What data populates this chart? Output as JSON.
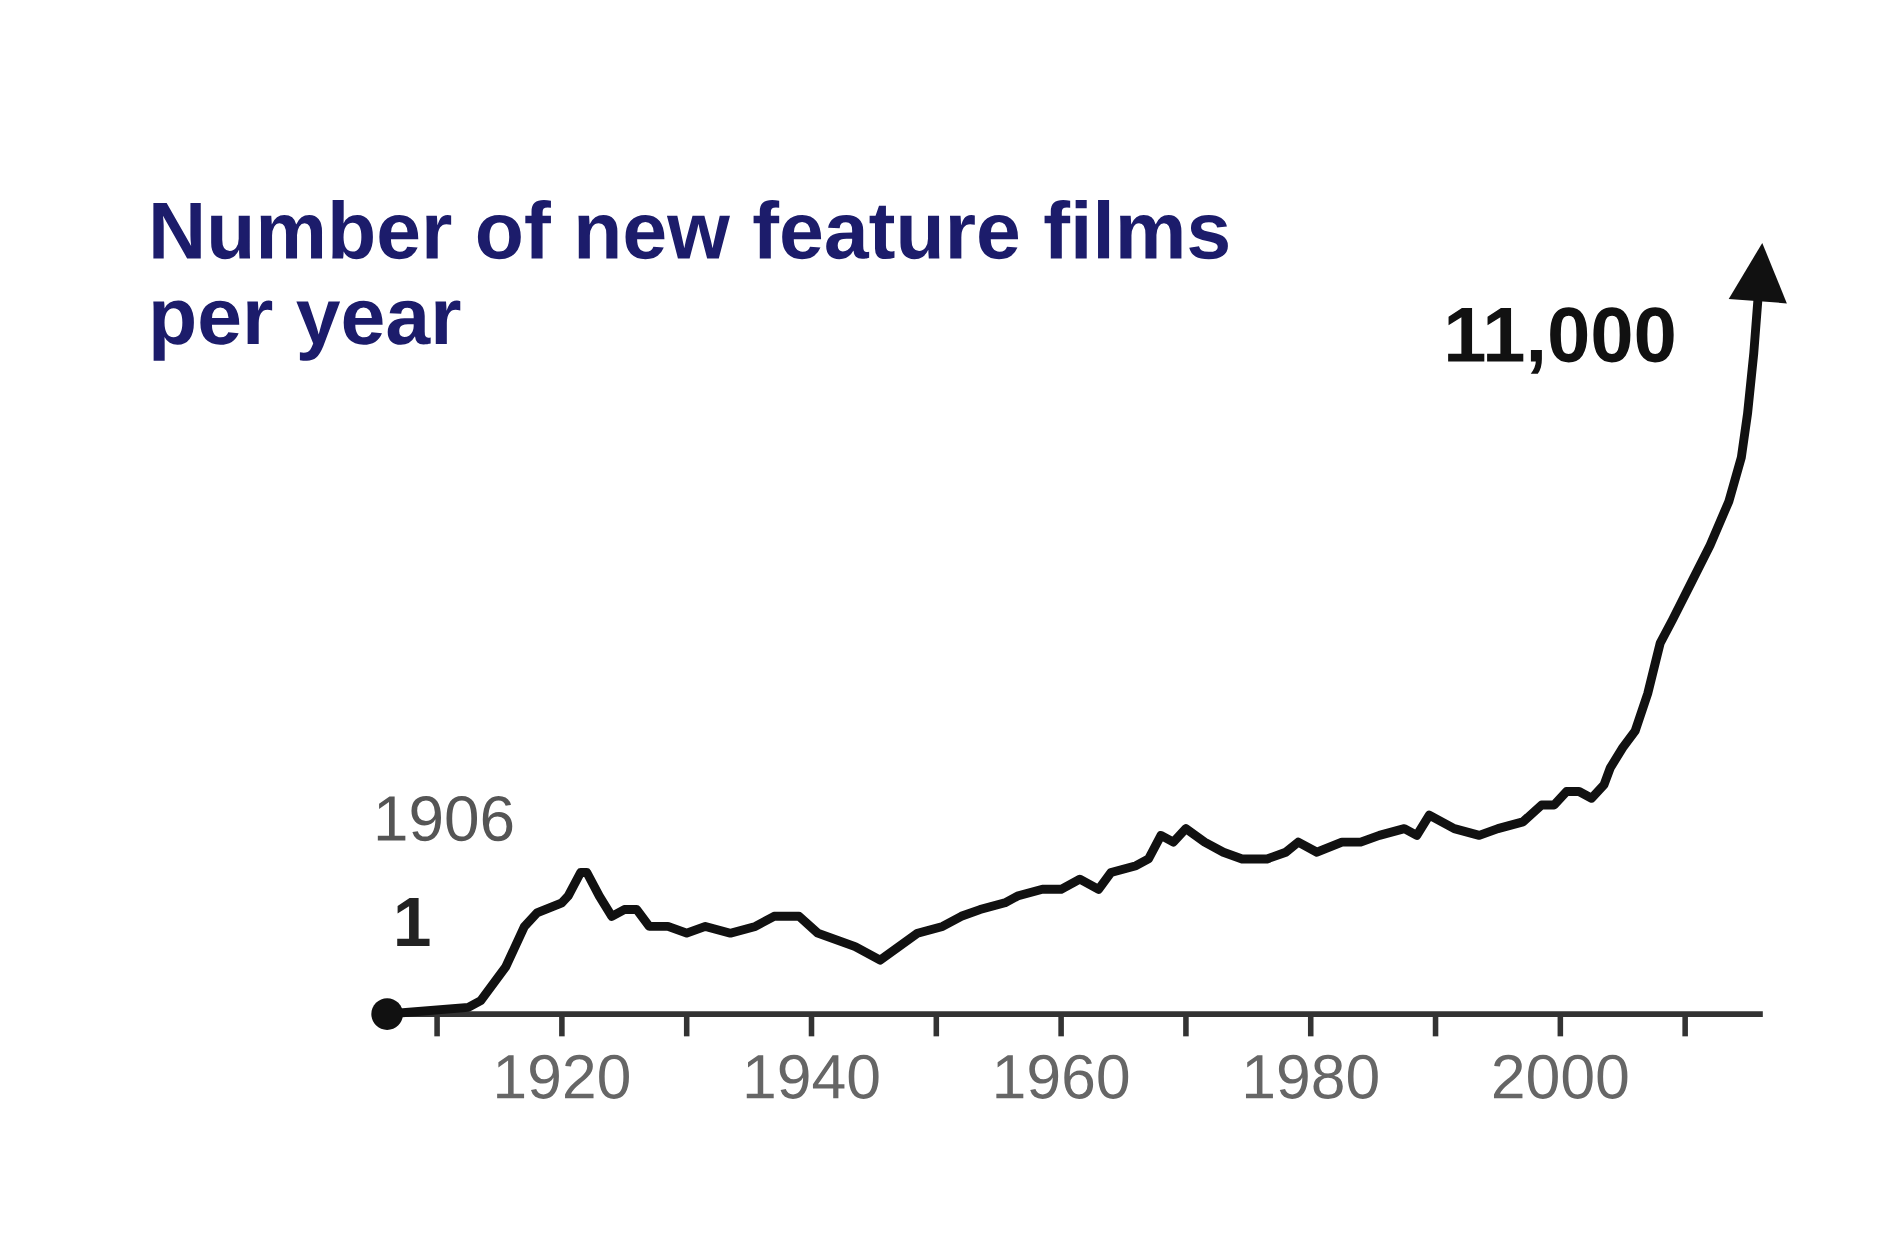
{
  "chart_data": {
    "type": "line",
    "title": "Number of new feature films\nper year",
    "xlim": [
      1906,
      2016
    ],
    "xticks": [
      {
        "value": 1910,
        "label": null
      },
      1920,
      {
        "value": 1930,
        "label": null
      },
      1940,
      {
        "value": 1950,
        "label": null
      },
      1960,
      {
        "value": 1970,
        "label": null
      },
      1980,
      {
        "value": 1990,
        "label": null
      },
      2000,
      {
        "value": 2010,
        "label": null
      }
    ],
    "tick_labels": "x",
    "annotations": [
      "1906"
    ],
    "series": [
      {
        "color": "#111111",
        "x": [
          1906,
          1912.5,
          1913.5,
          1915.5,
          1917,
          1918,
          1920,
          1920.5,
          1921.5,
          1922,
          1923,
          1924,
          1925,
          1926,
          1927,
          1928.5,
          1930,
          1931.5,
          1933.5,
          1935.5,
          1937,
          1939,
          1940.5,
          1943.5,
          1945.5,
          1947,
          1948.5,
          1950.5,
          1952,
          1953.5,
          1955.5,
          1956.5,
          1958.5,
          1960,
          1961.5,
          1963,
          1964,
          1966,
          1967,
          1968,
          1969,
          1970,
          1971.5,
          1973,
          1974.5,
          1976.5,
          1978,
          1979,
          1980.5,
          1982.5,
          1984,
          1985.5,
          1987.5,
          1988.5,
          1989.5,
          1991.5,
          1993.5,
          1995,
          1997,
          1998.5,
          1999.5,
          2000.5,
          2001.5,
          2002.5,
          2003.5,
          2004,
          2005,
          2006,
          2007,
          2008,
          2009,
          2010.5,
          2012,
          2013.5,
          2014.5,
          2015,
          2015.5,
          2016
        ],
        "values": [
          1,
          100,
          200,
          700,
          1300,
          1500,
          1650,
          1750,
          2100,
          2100,
          1750,
          1450,
          1550,
          1550,
          1300,
          1300,
          1200,
          1300,
          1200,
          1300,
          1450,
          1450,
          1200,
          1000,
          800,
          1000,
          1200,
          1300,
          1450,
          1550,
          1650,
          1750,
          1850,
          1850,
          2000,
          1850,
          2100,
          2200,
          2300,
          2650,
          2550,
          2750,
          2550,
          2400,
          2300,
          2300,
          2400,
          2550,
          2400,
          2550,
          2550,
          2650,
          2750,
          2650,
          2950,
          2750,
          2650,
          2750,
          2850,
          3100,
          3100,
          3300,
          3300,
          3200,
          3400,
          3650,
          3950,
          4200,
          4750,
          5500,
          5850,
          6400,
          6950,
          7600,
          8250,
          8900,
          9800,
          11000
        ],
        "value_labels": [
          "1",
          null,
          null,
          null,
          null,
          null,
          null,
          null,
          null,
          null,
          null,
          null,
          null,
          null,
          null,
          null,
          null,
          null,
          null,
          null,
          null,
          null,
          null,
          null,
          null,
          null,
          null,
          null,
          null,
          null,
          null,
          null,
          null,
          null,
          null,
          null,
          null,
          null,
          null,
          null,
          null,
          null,
          null,
          null,
          null,
          null,
          null,
          null,
          null,
          null,
          null,
          null,
          null,
          null,
          null,
          null,
          null,
          null,
          null,
          null,
          null,
          null,
          null,
          null,
          null,
          null,
          null,
          null,
          null,
          null,
          null,
          null,
          null,
          null,
          null,
          null,
          null,
          "11,000"
        ]
      },
      {
        "type": "scatter",
        "color": "#111111",
        "marker": "circle",
        "x": [
          1906
        ],
        "values": [
          1
        ]
      }
    ]
  }
}
